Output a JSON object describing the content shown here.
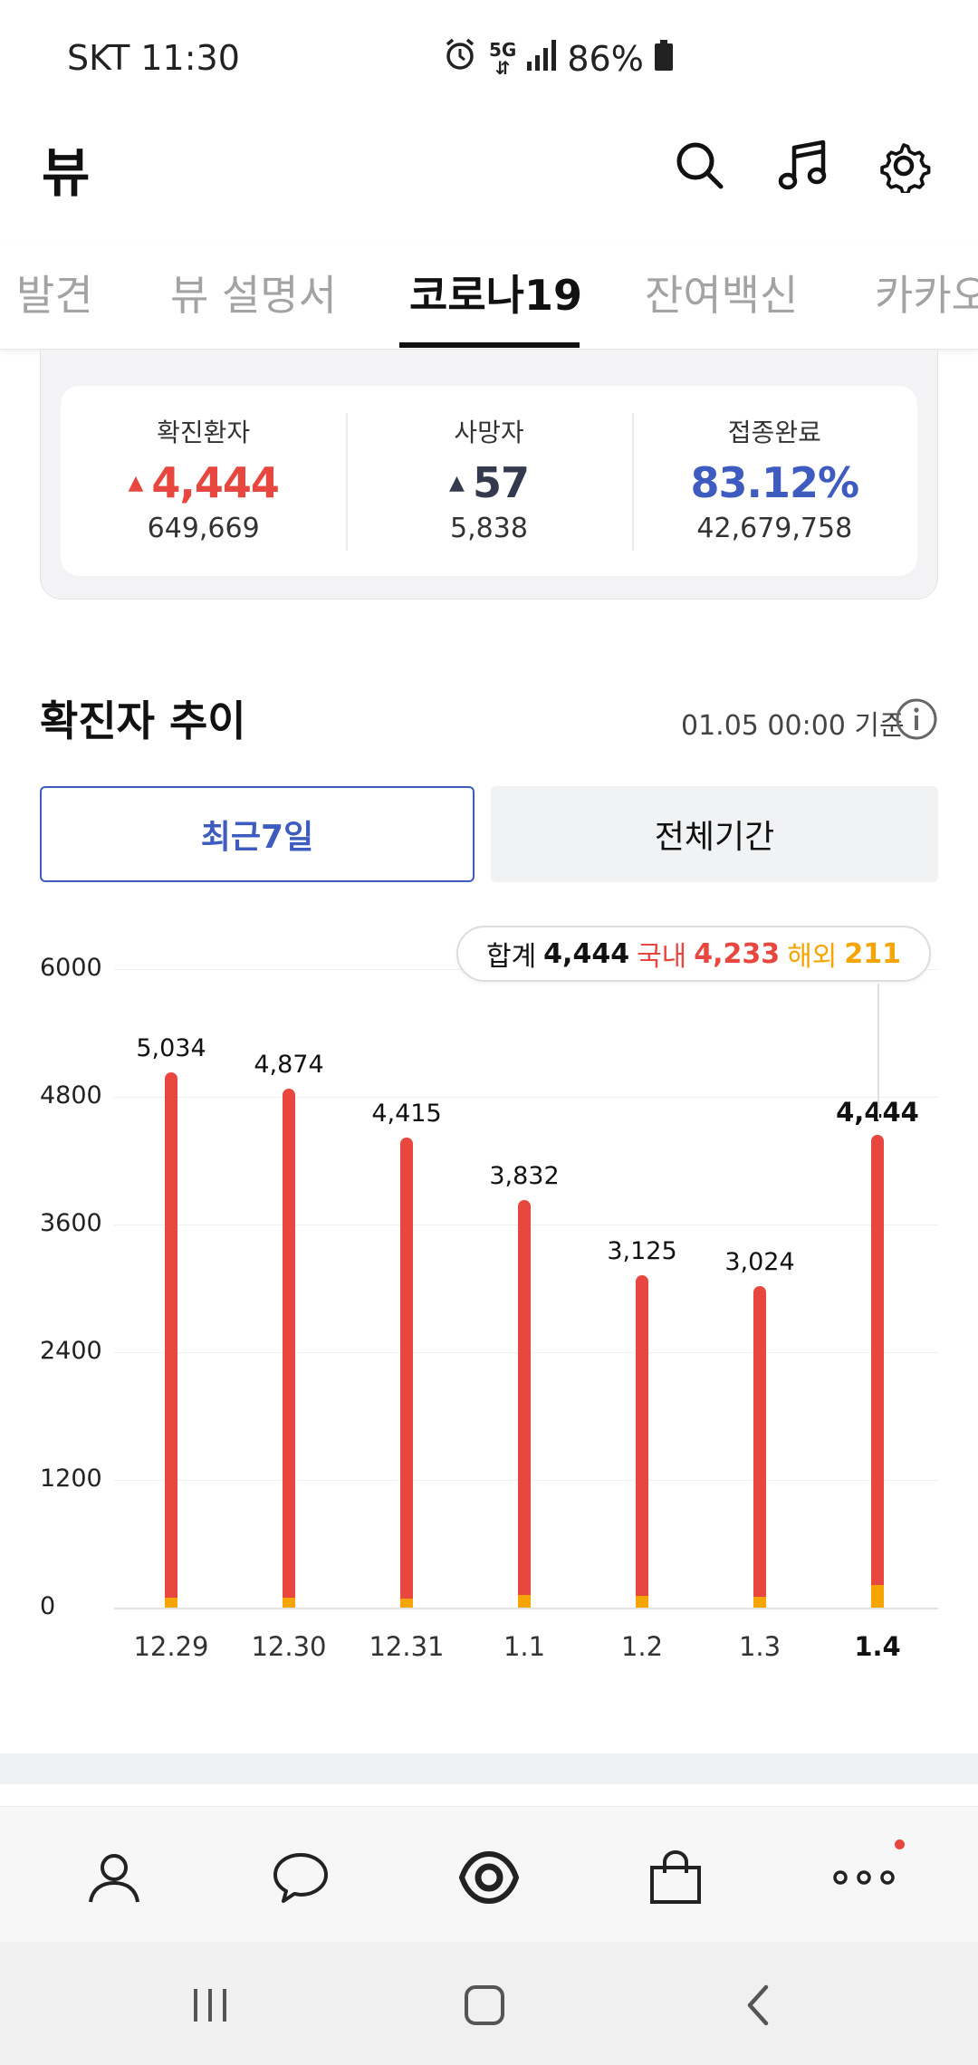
{
  "status_bar": {
    "carrier_time": "SKT 11:30",
    "network": "5G",
    "battery": "86%"
  },
  "header": {
    "title": "뷰",
    "icons": [
      "search-icon",
      "music-icon",
      "gear-icon"
    ]
  },
  "tabs": [
    {
      "label": "발견",
      "active": false
    },
    {
      "label": "뷰 설명서",
      "active": false
    },
    {
      "label": "코로나19",
      "active": true
    },
    {
      "label": "잔여백신",
      "active": false
    },
    {
      "label": "카카오",
      "active": false
    }
  ],
  "stats": [
    {
      "label": "확진환자",
      "value": "4,444",
      "total": "649,669",
      "color": "#e8473f",
      "arrow": "▲"
    },
    {
      "label": "사망자",
      "value": "57",
      "total": "5,838",
      "color": "#333a4d",
      "arrow": "▲"
    },
    {
      "label": "접종완료",
      "value": "83.12%",
      "total": "42,679,758",
      "color": "#3e5bbf",
      "arrow": ""
    }
  ],
  "trend": {
    "title": "확진자 추이",
    "timestamp": "01.05 00:00 기준",
    "buttons": {
      "recent": "최근7일",
      "all": "전체기간"
    }
  },
  "tooltip": {
    "total_label": "합계",
    "total_value": "4,444",
    "domestic_label": "국내",
    "domestic_value": "4,233",
    "overseas_label": "해외",
    "overseas_value": "211"
  },
  "chart_data": {
    "type": "bar",
    "categories": [
      "12.29",
      "12.30",
      "12.31",
      "1.1",
      "1.2",
      "1.3",
      "1.4"
    ],
    "series": [
      {
        "name": "국내",
        "color": "#e8473f"
      },
      {
        "name": "해외",
        "color": "#f5a400"
      }
    ],
    "values": [
      5034,
      4874,
      4415,
      3832,
      3125,
      3024,
      4444
    ],
    "value_labels": [
      "5,034",
      "4,874",
      "4,415",
      "3,832",
      "3,125",
      "3,024",
      "4,444"
    ],
    "overseas_values": [
      90,
      95,
      85,
      120,
      110,
      105,
      211
    ],
    "yticks": [
      "6000",
      "4800",
      "3600",
      "2400",
      "1200",
      "0"
    ],
    "ylim": [
      0,
      6000
    ],
    "highlight_index": 6
  },
  "bottom_nav": [
    "person-icon",
    "chat-icon",
    "view-icon",
    "shopping-icon",
    "more-icon"
  ]
}
